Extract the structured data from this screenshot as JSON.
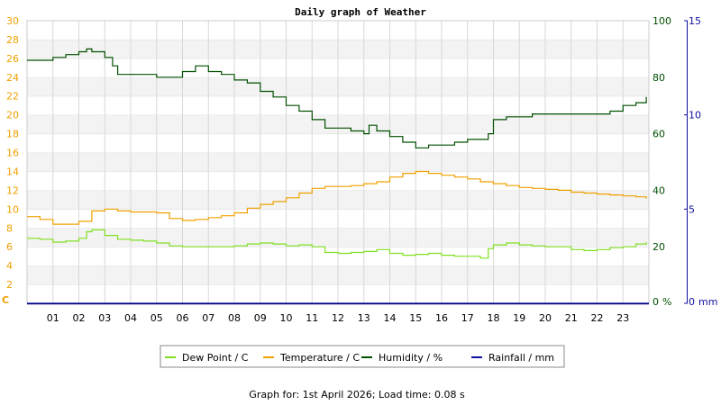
{
  "chart_data": {
    "type": "line",
    "title": "Daily graph of Weather",
    "x_ticks": [
      "01",
      "02",
      "03",
      "04",
      "05",
      "06",
      "07",
      "08",
      "09",
      "10",
      "11",
      "12",
      "13",
      "14",
      "15",
      "16",
      "17",
      "18",
      "19",
      "20",
      "21",
      "22",
      "23"
    ],
    "xlim": [
      0,
      24
    ],
    "axes": {
      "left": {
        "unit_label": "C",
        "ylim": [
          0,
          30
        ],
        "ticks": [
          0,
          2,
          4,
          6,
          8,
          10,
          12,
          14,
          16,
          18,
          20,
          22,
          24,
          26,
          28,
          30
        ],
        "color": "#f0a000"
      },
      "right1": {
        "unit_label": "%",
        "ylim": [
          0,
          100
        ],
        "ticks": [
          0,
          20,
          40,
          60,
          80,
          100
        ],
        "color": "#005000"
      },
      "right2": {
        "unit_label": "mm",
        "ylim": [
          0,
          15
        ],
        "ticks": [
          0,
          5,
          10,
          15
        ],
        "color": "#1010a0"
      }
    },
    "grid": true,
    "legend_position": "bottom",
    "series": [
      {
        "name": "Dew Point / C",
        "axis": "left",
        "color": "#80e020",
        "x": [
          0,
          0.5,
          1,
          1.5,
          2,
          2.3,
          2.5,
          3,
          3.5,
          4,
          4.5,
          5,
          5.5,
          6,
          6.5,
          7,
          7.5,
          8,
          8.5,
          9,
          9.5,
          10,
          10.5,
          11,
          11.5,
          12,
          12.5,
          13,
          13.5,
          14,
          14.5,
          15,
          15.5,
          16,
          16.5,
          17,
          17.5,
          17.8,
          18,
          18.5,
          19,
          19.5,
          20,
          20.5,
          21,
          21.5,
          22,
          22.5,
          23,
          23.5,
          23.9
        ],
        "y": [
          6.9,
          6.8,
          6.5,
          6.6,
          6.9,
          7.6,
          7.8,
          7.2,
          6.8,
          6.7,
          6.6,
          6.4,
          6.1,
          6.0,
          6.0,
          6.0,
          6.0,
          6.1,
          6.3,
          6.4,
          6.3,
          6.1,
          6.2,
          6.0,
          5.4,
          5.3,
          5.4,
          5.5,
          5.7,
          5.3,
          5.1,
          5.2,
          5.3,
          5.1,
          5.0,
          5.0,
          4.8,
          5.8,
          6.2,
          6.4,
          6.2,
          6.1,
          6.0,
          6.0,
          5.7,
          5.6,
          5.7,
          5.9,
          6.0,
          6.3,
          6.5
        ]
      },
      {
        "name": "Temperature / C",
        "axis": "left",
        "color": "#f0a000",
        "x": [
          0,
          0.5,
          1,
          1.5,
          2,
          2.5,
          3,
          3.5,
          4,
          4.5,
          5,
          5.5,
          6,
          6.5,
          7,
          7.5,
          8,
          8.5,
          9,
          9.5,
          10,
          10.5,
          11,
          11.5,
          12,
          12.5,
          13,
          13.5,
          14,
          14.5,
          15,
          15.5,
          16,
          16.5,
          17,
          17.5,
          18,
          18.5,
          19,
          19.5,
          20,
          20.5,
          21,
          21.5,
          22,
          22.5,
          23,
          23.5,
          23.9
        ],
        "y": [
          9.2,
          8.9,
          8.4,
          8.4,
          8.7,
          9.8,
          10.0,
          9.8,
          9.7,
          9.7,
          9.6,
          9.0,
          8.8,
          8.9,
          9.1,
          9.3,
          9.6,
          10.1,
          10.5,
          10.8,
          11.2,
          11.7,
          12.2,
          12.4,
          12.4,
          12.5,
          12.7,
          12.9,
          13.4,
          13.8,
          14.0,
          13.8,
          13.6,
          13.4,
          13.2,
          12.9,
          12.7,
          12.5,
          12.3,
          12.2,
          12.1,
          12.0,
          11.8,
          11.7,
          11.6,
          11.5,
          11.4,
          11.3,
          11.1
        ]
      },
      {
        "name": "Humidity / %",
        "axis": "right1",
        "color": "#005000",
        "x": [
          0,
          0.5,
          1,
          1.5,
          2,
          2.3,
          2.5,
          3,
          3.3,
          3.5,
          4,
          4.5,
          5,
          5.5,
          6,
          6.5,
          7,
          7.5,
          8,
          8.5,
          9,
          9.5,
          10,
          10.5,
          11,
          11.5,
          12,
          12.5,
          13,
          13.2,
          13.5,
          14,
          14.5,
          15,
          15.5,
          16,
          16.5,
          17,
          17.5,
          17.8,
          18,
          18.5,
          19,
          19.5,
          20,
          20.5,
          21,
          21.5,
          22,
          22.5,
          23,
          23.5,
          23.9
        ],
        "y": [
          86,
          86,
          87,
          88,
          89,
          90,
          89,
          87,
          84,
          81,
          81,
          81,
          80,
          80,
          82,
          84,
          82,
          81,
          79,
          78,
          75,
          73,
          70,
          68,
          65,
          62,
          62,
          61,
          60,
          63,
          61,
          59,
          57,
          55,
          56,
          56,
          57,
          58,
          58,
          60,
          65,
          66,
          66,
          67,
          67,
          67,
          67,
          67,
          67,
          68,
          70,
          71,
          73
        ]
      },
      {
        "name": "Rainfall / mm",
        "axis": "right2",
        "color": "#1010a0",
        "x": [
          0,
          24
        ],
        "y": [
          0,
          0
        ]
      }
    ]
  },
  "footer": "Graph for: 1st April 2026; Load time: 0.08 s"
}
